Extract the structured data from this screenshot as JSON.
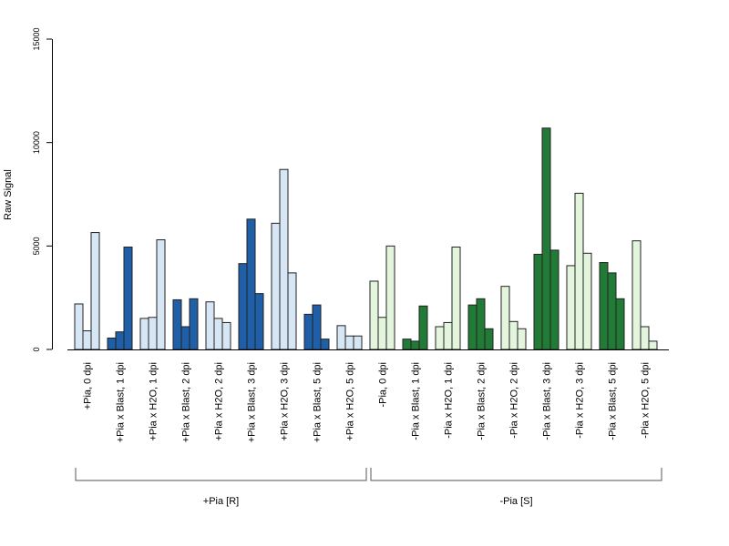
{
  "chart_data": {
    "type": "bar",
    "ylabel": "Raw Signal",
    "xlabel": "",
    "ylim": [
      0,
      15000
    ],
    "yticks": [
      0,
      5000,
      10000,
      15000
    ],
    "grid": false,
    "colors": {
      "plus_light": "#d6e6f5",
      "plus_dark": "#1f5fa8",
      "minus_light": "#e3f5dc",
      "minus_dark": "#217a35"
    },
    "categories": [
      {
        "label": "+Pia, 0 dpi",
        "values": [
          2200,
          900,
          5650
        ],
        "color": "plus_light"
      },
      {
        "label": "+Pia x Blast, 1 dpi",
        "values": [
          550,
          850,
          4950
        ],
        "color": "plus_dark"
      },
      {
        "label": "+Pia x H2O, 1 dpi",
        "values": [
          1500,
          1550,
          5300
        ],
        "color": "plus_light"
      },
      {
        "label": "+Pia x Blast, 2 dpi",
        "values": [
          2400,
          1100,
          2450
        ],
        "color": "plus_dark"
      },
      {
        "label": "+Pia x H2O, 2 dpi",
        "values": [
          2300,
          1500,
          1300
        ],
        "color": "plus_light"
      },
      {
        "label": "+Pia x Blast, 3 dpi",
        "values": [
          4150,
          6300,
          2700
        ],
        "color": "plus_dark"
      },
      {
        "label": "+Pia x H2O, 3 dpi",
        "values": [
          6100,
          8700,
          3700
        ],
        "color": "plus_light"
      },
      {
        "label": "+Pia x Blast, 5 dpi",
        "values": [
          1700,
          2150,
          500
        ],
        "color": "plus_dark"
      },
      {
        "label": "+Pia x H2O, 5 dpi",
        "values": [
          1150,
          650,
          650
        ],
        "color": "plus_light"
      },
      {
        "label": "-Pia, 0 dpi",
        "values": [
          3300,
          1550,
          5000
        ],
        "color": "minus_light"
      },
      {
        "label": "-Pia x Blast, 1 dpi",
        "values": [
          500,
          400,
          2100
        ],
        "color": "minus_dark"
      },
      {
        "label": "-Pia x H2O, 1 dpi",
        "values": [
          1100,
          1300,
          4950
        ],
        "color": "minus_light"
      },
      {
        "label": "-Pia x Blast, 2 dpi",
        "values": [
          2150,
          2450,
          1000
        ],
        "color": "minus_dark"
      },
      {
        "label": "-Pia x H2O, 2 dpi",
        "values": [
          3050,
          1350,
          1000
        ],
        "color": "minus_light"
      },
      {
        "label": "-Pia x Blast, 3 dpi",
        "values": [
          4600,
          10700,
          4800
        ],
        "color": "minus_dark"
      },
      {
        "label": "-Pia x H2O, 3 dpi",
        "values": [
          4050,
          7550,
          4650
        ],
        "color": "minus_light"
      },
      {
        "label": "-Pia x Blast, 5 dpi",
        "values": [
          4200,
          3700,
          2450
        ],
        "color": "minus_dark"
      },
      {
        "label": "-Pia x H2O, 5 dpi",
        "values": [
          5250,
          1100,
          400
        ],
        "color": "minus_light"
      }
    ],
    "groups": [
      {
        "label": "+Pia [R]",
        "from": 0,
        "to": 8
      },
      {
        "label": "-Pia [S]",
        "from": 9,
        "to": 17
      }
    ]
  }
}
